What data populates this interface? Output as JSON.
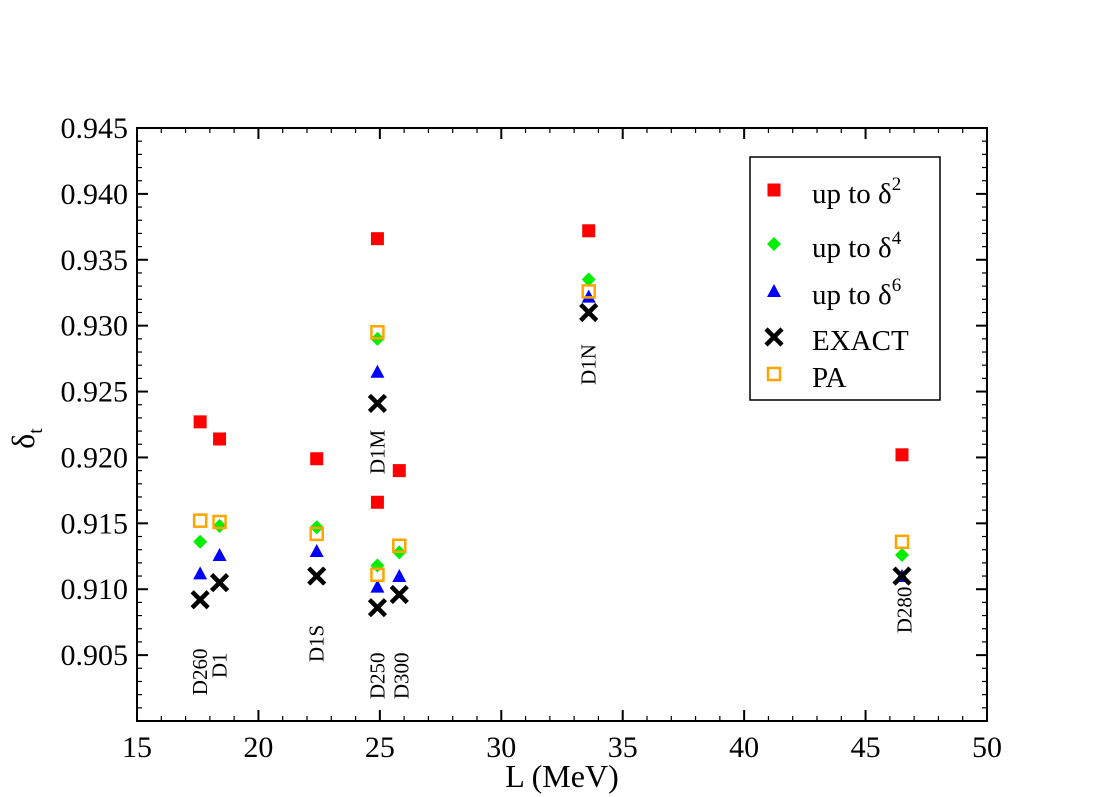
{
  "chart_data": {
    "type": "scatter",
    "xlabel": "L (MeV)",
    "ylabel_main": "δ",
    "ylabel_sub": "t",
    "xlim": [
      15,
      50
    ],
    "ylim": [
      0.9,
      0.945
    ],
    "xticks": [
      15,
      20,
      25,
      30,
      35,
      40,
      45,
      50
    ],
    "xtick_labels": [
      "15",
      "20",
      "25",
      "30",
      "35",
      "40",
      "45",
      "50"
    ],
    "yticks": [
      0.905,
      0.91,
      0.915,
      0.92,
      0.925,
      0.93,
      0.935,
      0.94,
      0.945
    ],
    "ytick_labels": [
      "0.905",
      "0.910",
      "0.915",
      "0.920",
      "0.925",
      "0.930",
      "0.935",
      "0.940",
      "0.945"
    ],
    "x_minor_step": 1,
    "y_minor_step": 0.001,
    "legend_position": "top-right",
    "series": [
      {
        "name": "up to δ2",
        "label_prefix": "up to  δ",
        "label_sup": "2",
        "marker": "square-filled",
        "color": "#ff0000",
        "x": [
          17.6,
          18.4,
          22.4,
          24.9,
          24.9,
          25.8,
          33.6,
          46.5
        ],
        "y": [
          0.9227,
          0.9214,
          0.9199,
          0.9366,
          0.9166,
          0.919,
          0.9372,
          0.9202
        ]
      },
      {
        "name": "up to δ4",
        "label_prefix": "up to δ",
        "label_sup": "4",
        "marker": "diamond-filled",
        "color": "#00ee00",
        "x": [
          17.6,
          18.4,
          22.4,
          24.9,
          24.9,
          25.8,
          33.6,
          46.5
        ],
        "y": [
          0.9136,
          0.9148,
          0.9147,
          0.929,
          0.9118,
          0.9128,
          0.9335,
          0.9126
        ]
      },
      {
        "name": "up to δ6",
        "label_prefix": "up to δ",
        "label_sup": "6",
        "marker": "triangle-filled",
        "color": "#0000ff",
        "x": [
          17.6,
          18.4,
          22.4,
          24.9,
          24.9,
          25.8,
          33.6,
          46.5
        ],
        "y": [
          0.9112,
          0.9126,
          0.9129,
          0.9265,
          0.9102,
          0.911,
          0.9322,
          0.911
        ]
      },
      {
        "name": "EXACT",
        "label_prefix": "EXACT",
        "label_sup": "",
        "marker": "x",
        "color": "#000000",
        "x": [
          17.6,
          18.4,
          22.4,
          24.9,
          24.9,
          25.8,
          33.6,
          46.5
        ],
        "y": [
          0.9092,
          0.9105,
          0.911,
          0.9241,
          0.9086,
          0.9096,
          0.931,
          0.911
        ]
      },
      {
        "name": "PA",
        "label_prefix": "PA",
        "label_sup": "",
        "marker": "square-open",
        "color": "#ffa500",
        "x": [
          17.6,
          18.4,
          22.4,
          24.9,
          24.9,
          25.8,
          33.6,
          46.5
        ],
        "y": [
          0.9152,
          0.9151,
          0.9142,
          0.9295,
          0.9111,
          0.9133,
          0.9326,
          0.9136
        ]
      }
    ],
    "annotations": [
      {
        "text": "D260",
        "x": 17.6,
        "y_top": 0.9055
      },
      {
        "text": "D1",
        "x": 18.4,
        "y_top": 0.9052
      },
      {
        "text": "D1S",
        "x": 22.4,
        "y_top": 0.9073
      },
      {
        "text": "D250",
        "x": 24.9,
        "y_top": 0.9052
      },
      {
        "text": "D300",
        "x": 25.9,
        "y_top": 0.9052
      },
      {
        "text": "D1M",
        "x": 24.9,
        "y_top": 0.9221
      },
      {
        "text": "D1N",
        "x": 33.6,
        "y_top": 0.9286
      },
      {
        "text": "D280",
        "x": 46.6,
        "y_top": 0.9102
      }
    ]
  }
}
